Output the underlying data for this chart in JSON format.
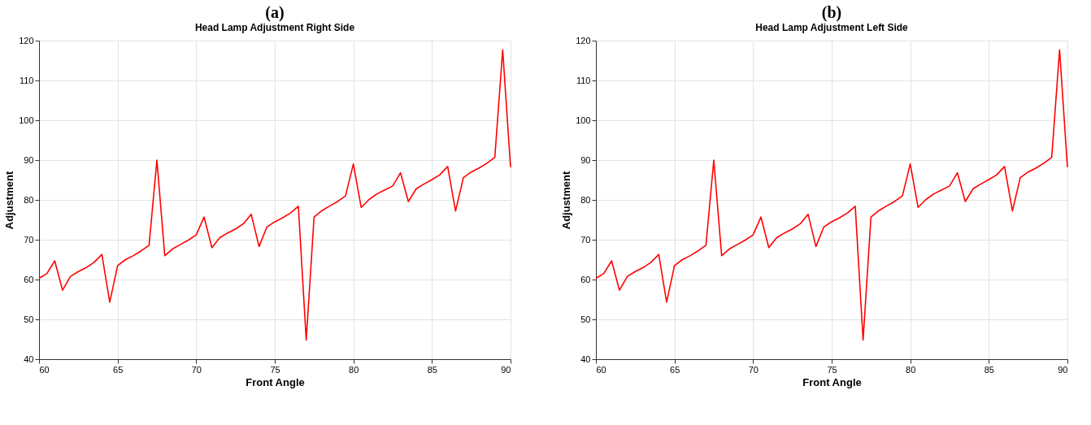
{
  "chart_data": [
    {
      "type": "line",
      "title": "(a)",
      "subtitle": "Head Lamp Adjustment Right Side",
      "xlabel": "Front Angle",
      "ylabel": "Adjustment",
      "x": [
        60,
        60.5,
        61,
        61.5,
        62,
        62.5,
        63,
        63.5,
        64,
        64.5,
        65,
        65.5,
        66,
        66.5,
        67,
        67.5,
        68,
        68.5,
        69,
        69.5,
        70,
        70.5,
        71,
        71.5,
        72,
        72.5,
        73,
        73.5,
        74,
        74.5,
        75,
        75.5,
        76,
        76.5,
        77,
        77.5,
        78,
        78.5,
        79,
        79.5,
        80,
        80.5,
        81,
        81.5,
        82,
        82.5,
        83,
        83.5,
        84,
        84.5,
        85,
        85.5,
        86,
        86.5,
        87,
        87.5,
        88,
        88.5,
        89,
        89.5,
        90
      ],
      "series": [
        {
          "color": "#ff0000",
          "values": [
            60.3,
            61.5,
            64.7,
            57.3,
            60.8,
            62,
            63,
            64.3,
            66.3,
            54.3,
            63.5,
            65,
            66,
            67.2,
            68.6,
            90,
            66,
            67.7,
            68.8,
            69.9,
            71.2,
            75.7,
            68,
            70.5,
            71.7,
            72.7,
            74,
            76.4,
            68.3,
            73.2,
            74.5,
            75.5,
            76.7,
            78.4,
            44.8,
            75.7,
            77.3,
            78.5,
            79.6,
            81,
            89,
            78.1,
            80.1,
            81.5,
            82.5,
            83.5,
            86.8,
            79.6,
            82.8,
            84,
            85.1,
            86.3,
            88.4,
            77.2,
            85.6,
            87,
            88,
            89.2,
            90.7,
            117.7,
            88.2
          ]
        }
      ],
      "xlim": [
        60,
        90
      ],
      "xticks": [
        60,
        65,
        70,
        75,
        80,
        85,
        90
      ],
      "ylim": [
        40,
        120
      ],
      "yticks": [
        40,
        50,
        60,
        70,
        80,
        90,
        100,
        110,
        120
      ],
      "grid": true,
      "line_style": "solid",
      "marker": "none"
    },
    {
      "type": "line",
      "title": "(b)",
      "subtitle": "Head Lamp Adjustment Left Side",
      "xlabel": "Front Angle",
      "ylabel": "Adjustment",
      "x": [
        60,
        60.5,
        61,
        61.5,
        62,
        62.5,
        63,
        63.5,
        64,
        64.5,
        65,
        65.5,
        66,
        66.5,
        67,
        67.5,
        68,
        68.5,
        69,
        69.5,
        70,
        70.5,
        71,
        71.5,
        72,
        72.5,
        73,
        73.5,
        74,
        74.5,
        75,
        75.5,
        76,
        76.5,
        77,
        77.5,
        78,
        78.5,
        79,
        79.5,
        80,
        80.5,
        81,
        81.5,
        82,
        82.5,
        83,
        83.5,
        84,
        84.5,
        85,
        85.5,
        86,
        86.5,
        87,
        87.5,
        88,
        88.5,
        89,
        89.5,
        90
      ],
      "series": [
        {
          "color": "#ff0000",
          "values": [
            60.3,
            61.5,
            64.7,
            57.3,
            60.8,
            62,
            63,
            64.3,
            66.3,
            54.3,
            63.5,
            65,
            66,
            67.2,
            68.6,
            90,
            66,
            67.7,
            68.8,
            69.9,
            71.2,
            75.7,
            68,
            70.5,
            71.7,
            72.7,
            74,
            76.4,
            68.3,
            73.2,
            74.5,
            75.5,
            76.7,
            78.4,
            44.8,
            75.7,
            77.3,
            78.5,
            79.6,
            81,
            89,
            78.1,
            80.1,
            81.5,
            82.5,
            83.5,
            86.8,
            79.6,
            82.8,
            84,
            85.1,
            86.3,
            88.4,
            77.2,
            85.6,
            87,
            88,
            89.2,
            90.7,
            117.7,
            88.2
          ]
        }
      ],
      "xlim": [
        60,
        90
      ],
      "xticks": [
        60,
        65,
        70,
        75,
        80,
        85,
        90
      ],
      "ylim": [
        40,
        120
      ],
      "yticks": [
        40,
        50,
        60,
        70,
        80,
        90,
        100,
        110,
        120
      ],
      "grid": true,
      "line_style": "solid",
      "marker": "none"
    }
  ]
}
